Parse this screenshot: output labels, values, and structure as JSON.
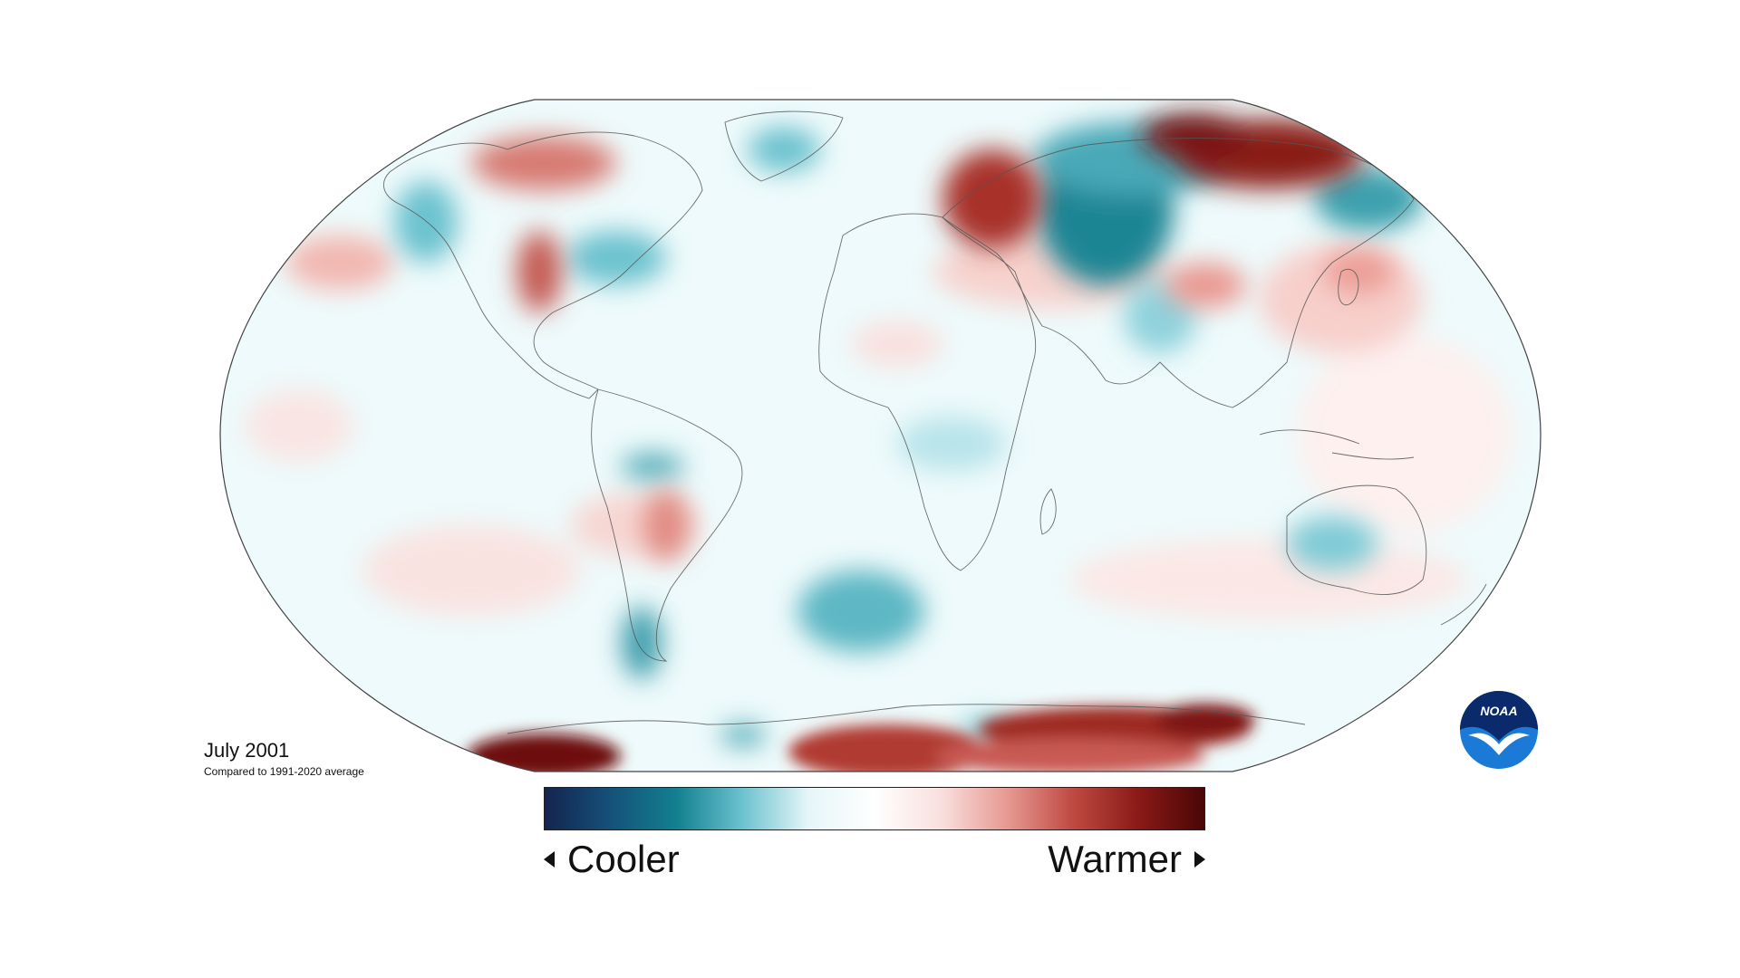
{
  "map": {
    "title": "July 2001",
    "subtitle": "Compared to 1991-2020 average",
    "projection": "robinson",
    "legend": {
      "cooler_label": "Cooler",
      "warmer_label": "Warmer",
      "colors": [
        "#14244f",
        "#15517a",
        "#12808f",
        "#6cc2cf",
        "#e6f6f8",
        "#ffffff",
        "#f9e0de",
        "#e79a93",
        "#bf4a42",
        "#8a1a17",
        "#4a0606"
      ]
    },
    "anomaly_regions": [
      {
        "region": "Northwestern Russia",
        "kind": "warm",
        "level": 0.9
      },
      {
        "region": "Western Siberia",
        "kind": "cool",
        "level": 0.9
      },
      {
        "region": "Northeastern Siberia",
        "kind": "warm",
        "level": 1.0
      },
      {
        "region": "Far East Russia",
        "kind": "cool",
        "level": 0.6
      },
      {
        "region": "Northern Canada",
        "kind": "warm",
        "level": 0.5
      },
      {
        "region": "Western United States",
        "kind": "warm",
        "level": 0.6
      },
      {
        "region": "Northwestern North America",
        "kind": "cool",
        "level": 0.5
      },
      {
        "region": "Eastern North America",
        "kind": "cool",
        "level": 0.5
      },
      {
        "region": "Greenland",
        "kind": "cool",
        "level": 0.5
      },
      {
        "region": "North Pacific",
        "kind": "warm",
        "level": 0.4
      },
      {
        "region": "Japan",
        "kind": "warm",
        "level": 0.5
      },
      {
        "region": "South Atlantic",
        "kind": "cool",
        "level": 0.5
      },
      {
        "region": "Southern South America",
        "kind": "cool",
        "level": 0.6
      },
      {
        "region": "Central South America",
        "kind": "warm",
        "level": 0.5
      },
      {
        "region": "Antarctica Pacific sector",
        "kind": "warm",
        "level": 1.0
      },
      {
        "region": "East Antarctica",
        "kind": "warm",
        "level": 0.9
      }
    ],
    "logo": {
      "text": "NOAA",
      "colors": [
        "#0a2a6b",
        "#1a7ad6",
        "#ffffff"
      ]
    }
  }
}
